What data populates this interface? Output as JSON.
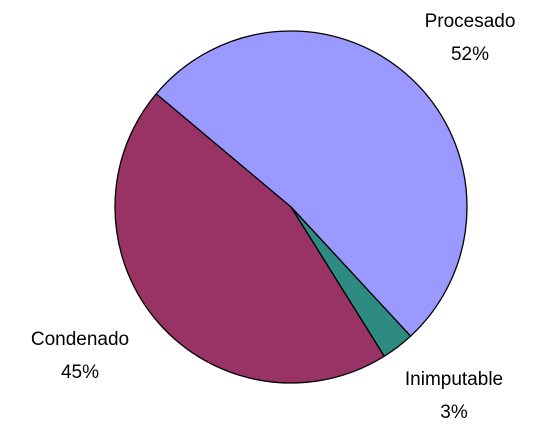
{
  "chart_data": {
    "type": "pie",
    "categories": [
      "Procesado",
      "Inimputable",
      "Condenado"
    ],
    "values": [
      52,
      3,
      45
    ],
    "value_labels": [
      "52%",
      "3%",
      "45%"
    ],
    "colors": [
      "#9999ff",
      "#2e8b82",
      "#993366"
    ]
  }
}
